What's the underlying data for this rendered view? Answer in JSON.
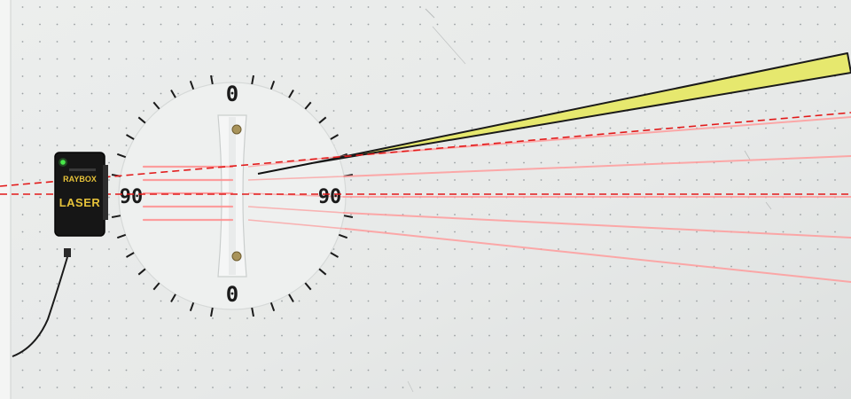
{
  "protractor": {
    "label_top": "0",
    "label_bottom": "0",
    "label_left": "90",
    "label_right": "90"
  },
  "laser_box": {
    "brand": "RAYBOX",
    "model": "LASER"
  },
  "colors": {
    "board": "#e9ebea",
    "grid_dot": "#9aa0a2",
    "laser_beam": "#ff9a9a",
    "dashed_line": "#e21a1a",
    "wedge_fill": "#e6e86e",
    "led": "#49e84a"
  }
}
